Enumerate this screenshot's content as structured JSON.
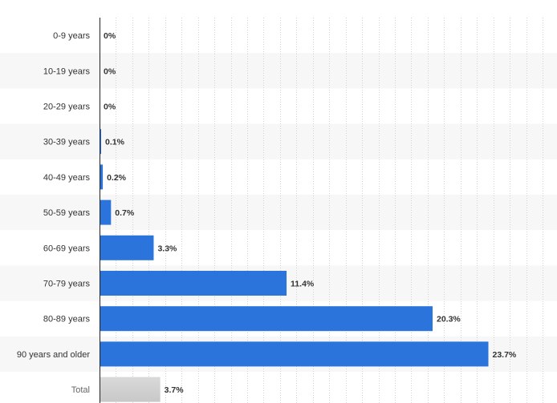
{
  "chart_data": {
    "type": "bar",
    "orientation": "horizontal",
    "title": "",
    "xlabel": "",
    "ylabel": "",
    "categories": [
      "0-9 years",
      "10-19 years",
      "20-29 years",
      "30-39 years",
      "40-49 years",
      "50-59 years",
      "60-69 years",
      "70-79 years",
      "80-89 years",
      "90 years and older",
      "Total"
    ],
    "values": [
      0,
      0,
      0,
      0.1,
      0.2,
      0.7,
      3.3,
      11.4,
      20.3,
      23.7,
      3.7
    ],
    "value_labels": [
      "0%",
      "0%",
      "0%",
      "0.1%",
      "0.2%",
      "0.7%",
      "3.3%",
      "11.4%",
      "20.3%",
      "23.7%",
      "3.7%"
    ],
    "xlim": [
      0,
      28
    ],
    "grid": true,
    "legend": "none",
    "colors": {
      "bar": "#2a74db",
      "total_bar": "#c8c8c8",
      "band": "#f7f7f7",
      "grid": "#d3d3d3",
      "axis": "#222222"
    }
  }
}
